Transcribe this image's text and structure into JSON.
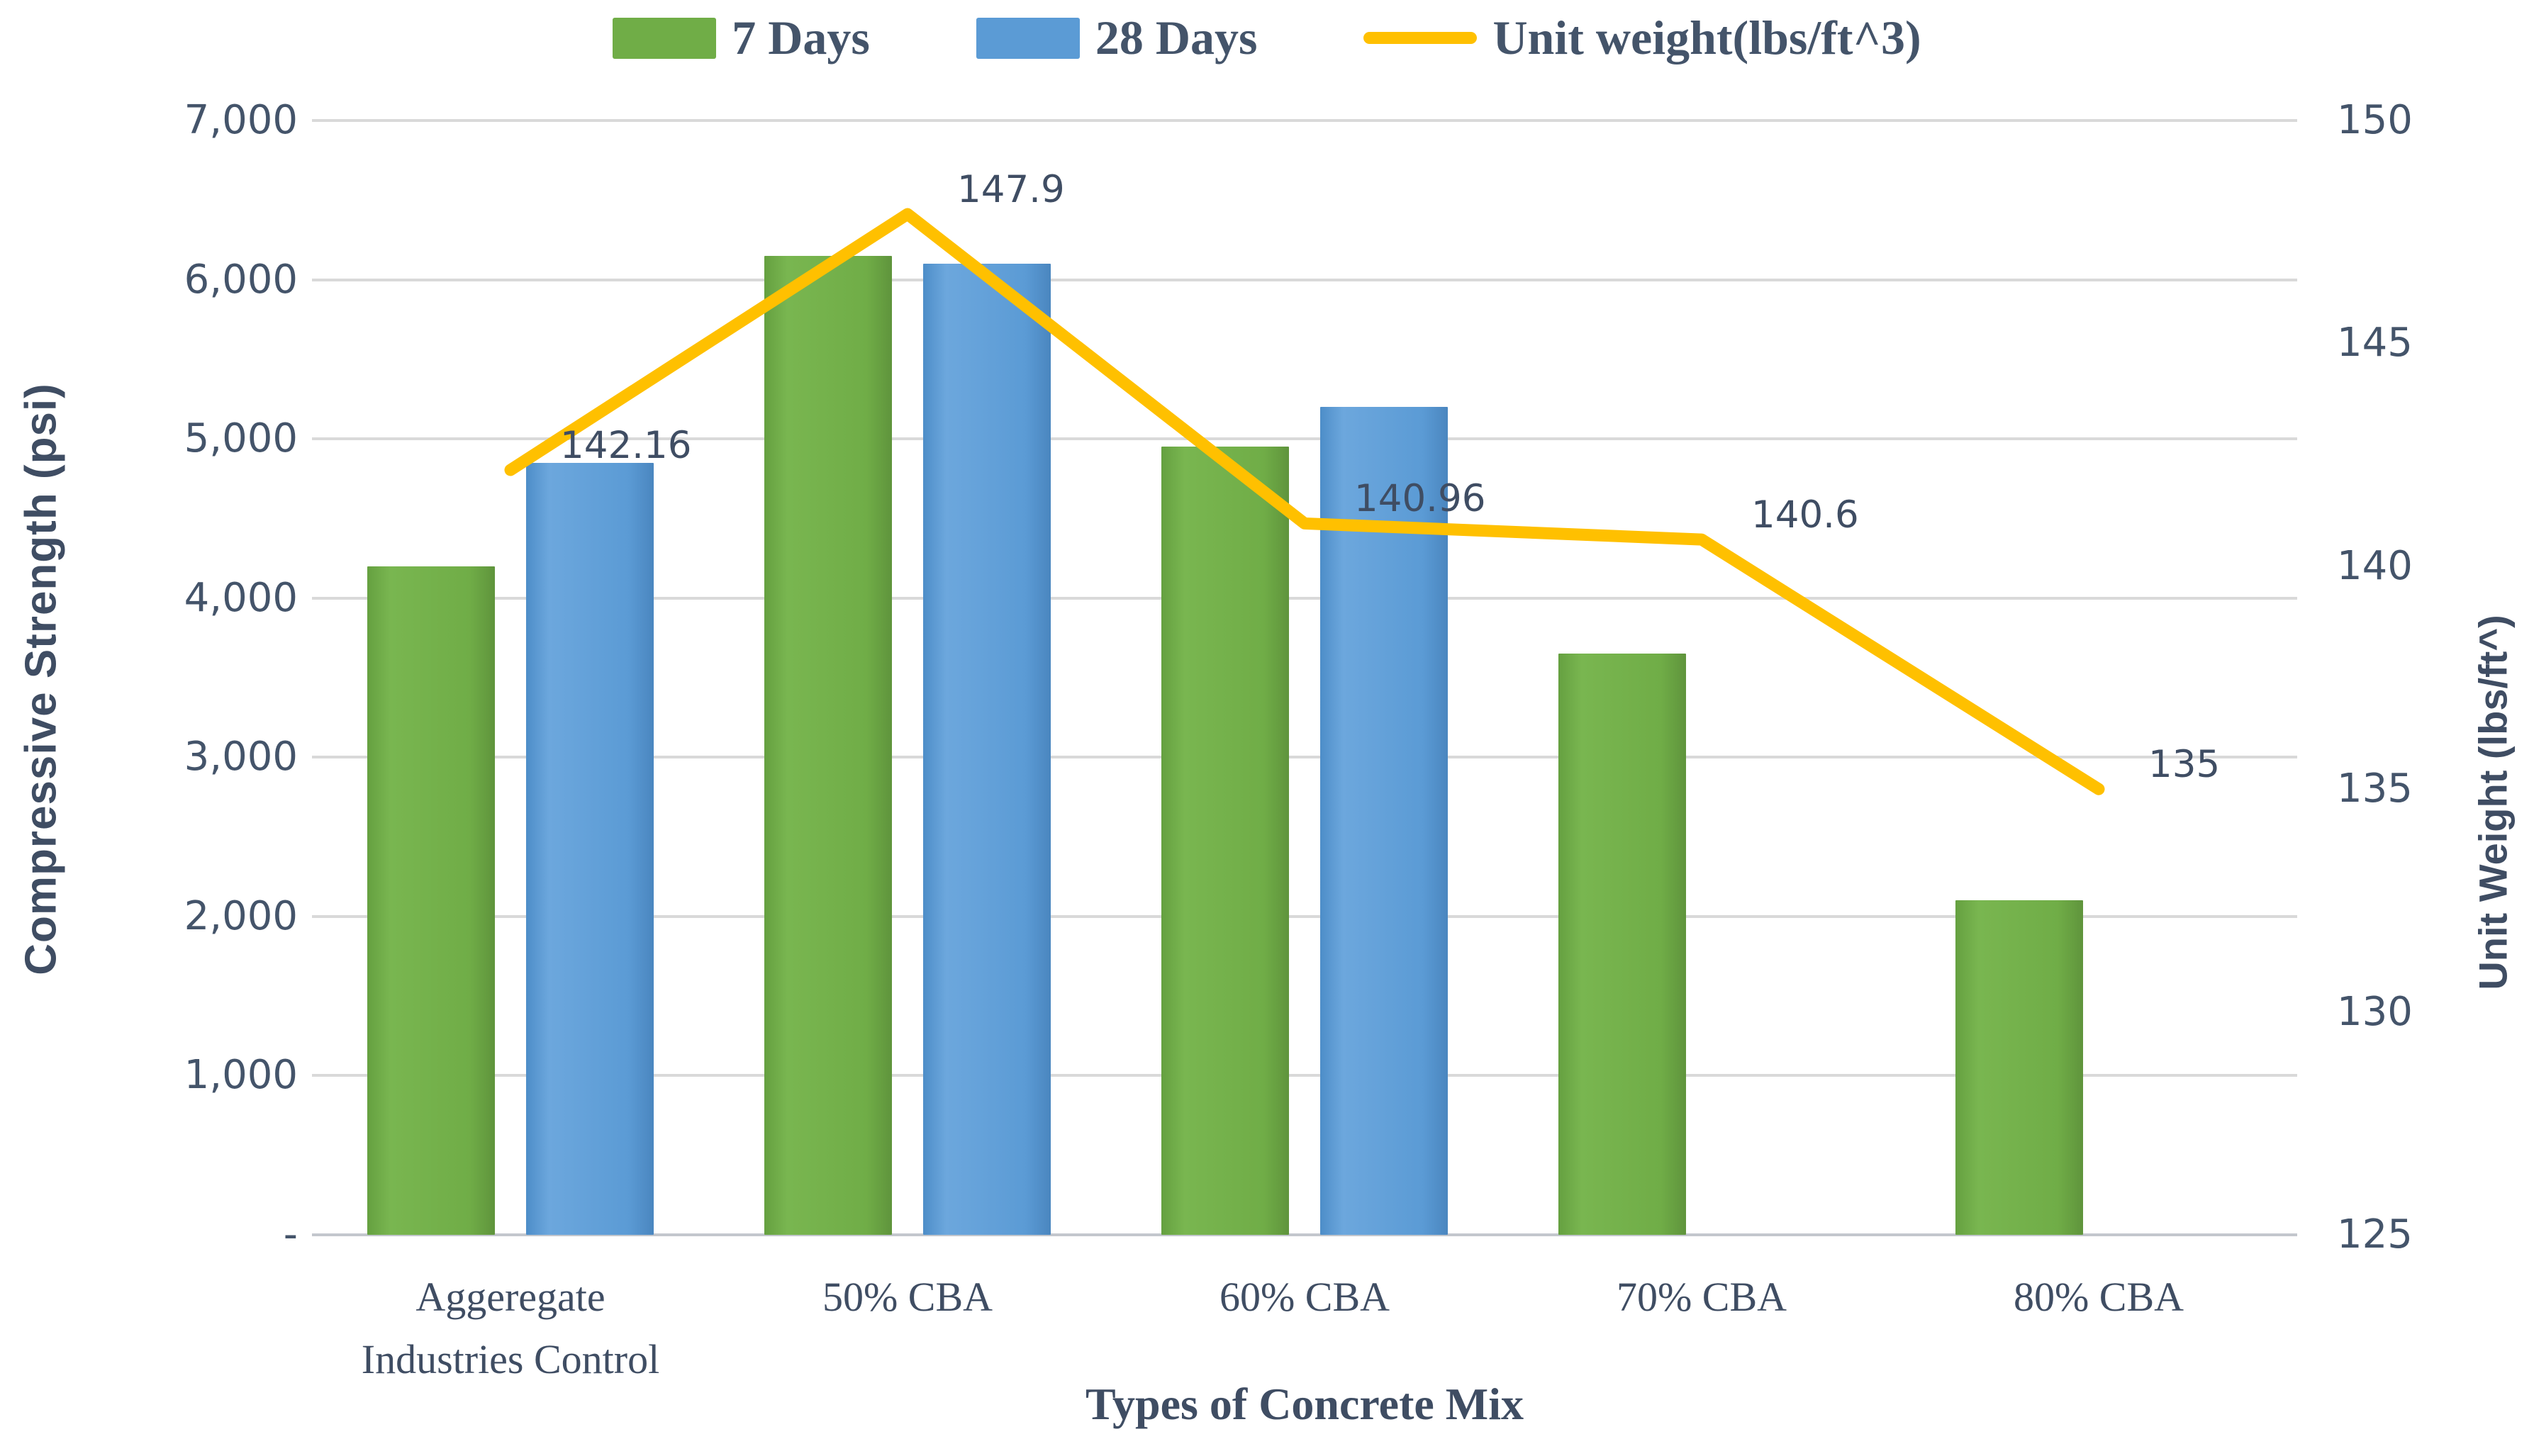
{
  "legend": {
    "items": [
      {
        "label": "7 Days",
        "swatch": "box",
        "color": "#70ad47"
      },
      {
        "label": "28 Days",
        "swatch": "box",
        "color": "#5b9bd5"
      },
      {
        "label": "Unit weight(lbs/ft^3)",
        "swatch": "line",
        "color": "#ffc000"
      }
    ]
  },
  "left_axis": {
    "title": "Compressive Strength (psi)",
    "ticks": [
      "7,000",
      "6,000",
      "5,000",
      "4,000",
      "3,000",
      "2,000",
      "1,000",
      "-"
    ]
  },
  "right_axis": {
    "title": "Unit Weight (lbs/ft^)",
    "ticks": [
      "150",
      "145",
      "140",
      "135",
      "130",
      "125"
    ]
  },
  "x_axis": {
    "title": "Types of Concrete Mix",
    "categories": [
      "Aggeregate\nIndustries Control",
      "50% CBA",
      "60% CBA",
      "70% CBA",
      "80% CBA"
    ]
  },
  "chart_data": {
    "type": "bar+line combo",
    "categories": [
      "Aggeregate Industries Control",
      "50% CBA",
      "60% CBA",
      "70% CBA",
      "80% CBA"
    ],
    "series": [
      {
        "name": "7 Days",
        "type": "bar",
        "axis": "left",
        "color": "#70ad47",
        "values": [
          4200,
          6150,
          4950,
          3650,
          2100
        ]
      },
      {
        "name": "28 Days",
        "type": "bar",
        "axis": "left",
        "color": "#5b9bd5",
        "values": [
          4850,
          6100,
          5200,
          null,
          null
        ]
      },
      {
        "name": "Unit weight(lbs/ft^3)",
        "type": "line",
        "axis": "right",
        "color": "#ffc000",
        "values": [
          142.16,
          147.9,
          140.96,
          140.6,
          135
        ],
        "labels": [
          "142.16",
          "147.9",
          "140.96",
          "140.6",
          "135"
        ]
      }
    ],
    "left_axis": {
      "label": "Compressive Strength (psi)",
      "range": [
        0,
        7000
      ],
      "tick_step": 1000
    },
    "right_axis": {
      "label": "Unit Weight (lbs/ft^)",
      "range": [
        125,
        150
      ],
      "tick_step": 5
    },
    "xlabel": "Types of Concrete Mix",
    "grid": true,
    "legend_position": "top",
    "grid_color": "#d9d9d9",
    "label_color": "#44546a"
  }
}
